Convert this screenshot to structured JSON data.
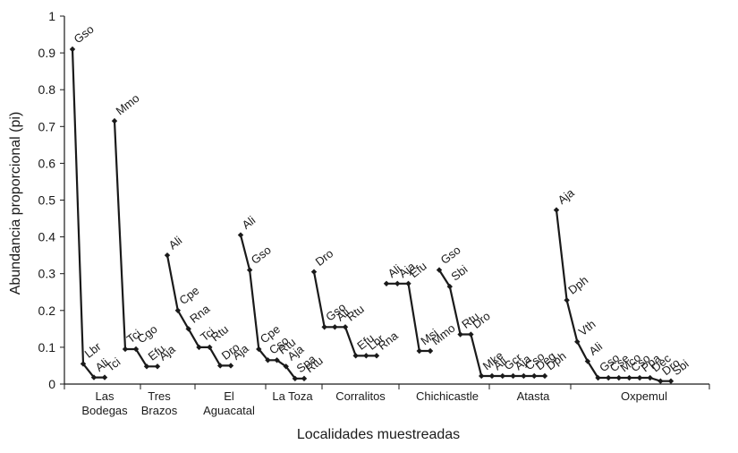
{
  "chart_data": {
    "type": "line",
    "xlabel": "Localidades muestreadas",
    "ylabel": "Abundancia proporcional (pi)",
    "ylim": [
      0,
      1
    ],
    "yticks": [
      "0",
      "0.1",
      "0.2",
      "0.3",
      "0.4",
      "0.5",
      "0.6",
      "0.7",
      "0.8",
      "0.9",
      "1"
    ],
    "grid": false,
    "legend": "none",
    "line_color": "#1a1a1a",
    "categories": [
      {
        "label": [
          "Las",
          "Bodegas"
        ]
      },
      {
        "label": [
          "Tres",
          "Brazos"
        ]
      },
      {
        "label": [
          "El",
          "Aguacatal"
        ]
      },
      {
        "label": [
          "La Toza"
        ]
      },
      {
        "label": [
          "Corralitos"
        ]
      },
      {
        "label": [
          "Chichicastle"
        ]
      },
      {
        "label": [
          "Atasta"
        ]
      },
      {
        "label": [
          "Oxpemul"
        ]
      }
    ],
    "series": [
      {
        "points": [
          {
            "label": "Gso",
            "y": 0.91
          },
          {
            "label": "Lbr",
            "y": 0.055
          },
          {
            "label": "Ali",
            "y": 0.018
          },
          {
            "label": "Tci",
            "y": 0.018
          }
        ]
      },
      {
        "points": [
          {
            "label": "Mmo",
            "y": 0.715
          },
          {
            "label": "Tci",
            "y": 0.095
          },
          {
            "label": "Cgo",
            "y": 0.095
          },
          {
            "label": "Efu",
            "y": 0.048
          },
          {
            "label": "Aja",
            "y": 0.048
          }
        ]
      },
      {
        "points": [
          {
            "label": "Ali",
            "y": 0.35
          },
          {
            "label": "Cpe",
            "y": 0.2
          },
          {
            "label": "Rna",
            "y": 0.15
          },
          {
            "label": "Tci",
            "y": 0.1
          },
          {
            "label": "Rtu",
            "y": 0.1
          },
          {
            "label": "Dro",
            "y": 0.05
          },
          {
            "label": "Aja",
            "y": 0.05
          }
        ]
      },
      {
        "points": [
          {
            "label": "Ali",
            "y": 0.405
          },
          {
            "label": "Gso",
            "y": 0.31
          },
          {
            "label": "Cpe",
            "y": 0.095
          },
          {
            "label": "Cso",
            "y": 0.065
          },
          {
            "label": "Rtu",
            "y": 0.065
          },
          {
            "label": "Aja",
            "y": 0.048
          },
          {
            "label": "Spa",
            "y": 0.015
          },
          {
            "label": "Rtu",
            "y": 0.015
          }
        ]
      },
      {
        "points": [
          {
            "label": "Dro",
            "y": 0.305
          },
          {
            "label": "Gso",
            "y": 0.155
          },
          {
            "label": "Ali",
            "y": 0.155
          },
          {
            "label": "Rtu",
            "y": 0.155
          },
          {
            "label": "Efu",
            "y": 0.077
          },
          {
            "label": "Lbr",
            "y": 0.077
          },
          {
            "label": "Rna",
            "y": 0.077
          }
        ]
      },
      {
        "points": [
          {
            "label": "Ali",
            "y": 0.273
          },
          {
            "label": "Aja",
            "y": 0.273
          },
          {
            "label": "Efu",
            "y": 0.273
          },
          {
            "label": "Msi",
            "y": 0.09
          },
          {
            "label": "Mmo",
            "y": 0.09
          }
        ]
      },
      {
        "points": [
          {
            "label": "Gso",
            "y": 0.31
          },
          {
            "label": "Sbi",
            "y": 0.265
          },
          {
            "label": "Rtu",
            "y": 0.135
          },
          {
            "label": "Dro",
            "y": 0.135
          },
          {
            "label": "Mke",
            "y": 0.022
          },
          {
            "label": "Ali",
            "y": 0.022
          },
          {
            "label": "Gcr",
            "y": 0.022
          },
          {
            "label": "Aja",
            "y": 0.022
          },
          {
            "label": "Cso",
            "y": 0.022
          },
          {
            "label": "Deg",
            "y": 0.022
          },
          {
            "label": "Dph",
            "y": 0.022
          }
        ]
      },
      {
        "points": [
          {
            "label": "Aja",
            "y": 0.473
          },
          {
            "label": "Dph",
            "y": 0.228
          },
          {
            "label": "Vth",
            "y": 0.115
          },
          {
            "label": "Ali",
            "y": 0.062
          },
          {
            "label": "Gso",
            "y": 0.017
          },
          {
            "label": "Cse",
            "y": 0.017
          },
          {
            "label": "Mco",
            "y": 0.017
          },
          {
            "label": "Cso",
            "y": 0.017
          },
          {
            "label": "Ppa",
            "y": 0.017
          },
          {
            "label": "Dec",
            "y": 0.017
          },
          {
            "label": "Dro",
            "y": 0.008
          },
          {
            "label": "Sbi",
            "y": 0.008
          }
        ]
      }
    ]
  }
}
